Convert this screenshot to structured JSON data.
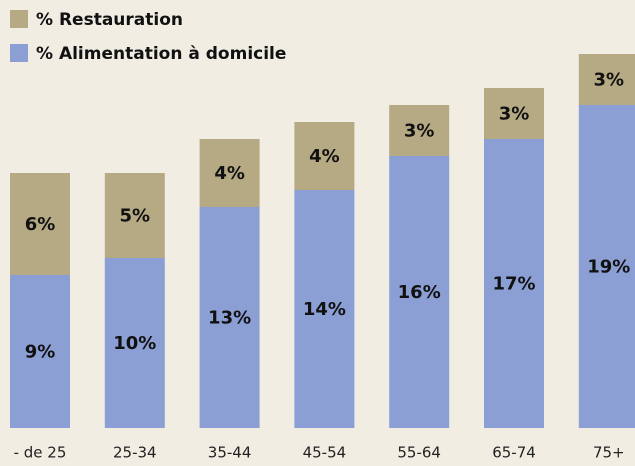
{
  "chart_data": {
    "type": "bar",
    "stacked": true,
    "categories": [
      "- de 25",
      "25-34",
      "35-44",
      "45-54",
      "55-64",
      "65-74",
      "75+"
    ],
    "series": [
      {
        "name": "% Alimentation à domicile",
        "color": "#8c9fd5",
        "values": [
          9,
          10,
          13,
          14,
          16,
          17,
          19
        ],
        "value_labels": [
          "9%",
          "10%",
          "13%",
          "14%",
          "16%",
          "17%",
          "19%"
        ]
      },
      {
        "name": "% Restauration",
        "color": "#b6aa84",
        "values": [
          6,
          5,
          4,
          4,
          3,
          3,
          3
        ],
        "value_labels": [
          "6%",
          "5%",
          "4%",
          "4%",
          "3%",
          "3%",
          "3%"
        ]
      }
    ]
  }
}
